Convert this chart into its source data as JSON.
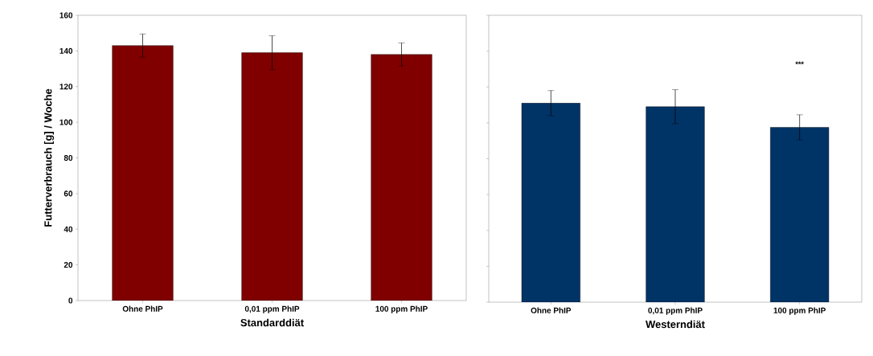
{
  "chart_data": [
    {
      "type": "bar",
      "categories": [
        "Ohne PhIP",
        "0,01 ppm PhIP",
        "100 ppm PhIP"
      ],
      "values": [
        143,
        139,
        138
      ],
      "errors": [
        6.5,
        9.5,
        6.5
      ],
      "color": "#800000",
      "ylim": [
        0,
        160
      ],
      "yticks": [
        0,
        20,
        40,
        60,
        80,
        100,
        120,
        140,
        160
      ],
      "xlabel": "Standarddiät",
      "ylabel": "Futterverbrauch [g] / Woche"
    },
    {
      "type": "bar",
      "categories": [
        "Ohne PhIP",
        "0,01 ppm PhIP",
        "100 ppm PhIP"
      ],
      "values": [
        111,
        109,
        97.5
      ],
      "errors": [
        7,
        9.5,
        7
      ],
      "color": "#003366",
      "ylim": [
        0,
        160
      ],
      "yticks": [
        0,
        20,
        40,
        60,
        80,
        100,
        120,
        140,
        160
      ],
      "xlabel": "Westerndiät",
      "tick_labels": "x",
      "annotations": [
        "***"
      ]
    }
  ]
}
